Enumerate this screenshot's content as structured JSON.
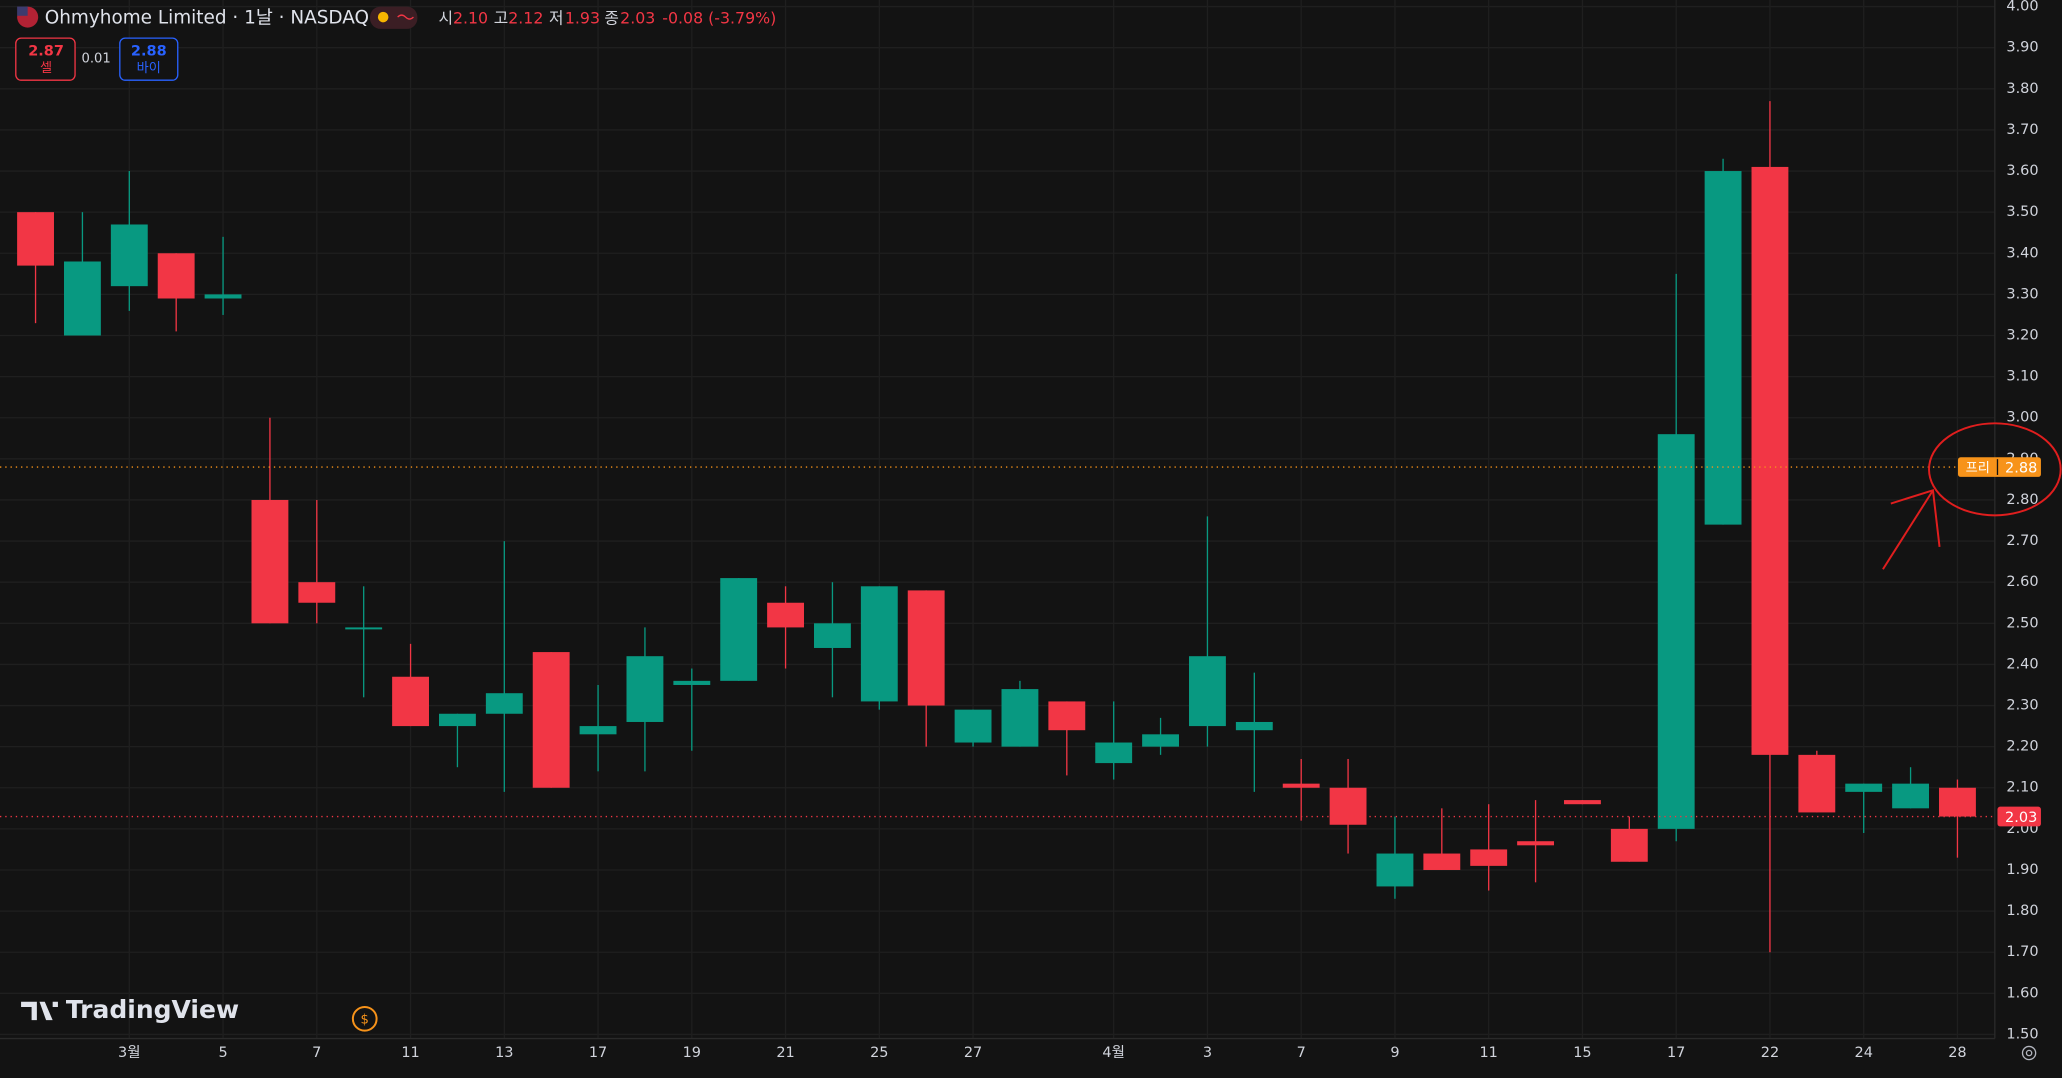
{
  "chart_data": {
    "type": "candlestick",
    "title": "Ohmyhome Limited · 1날 · NASDAQ",
    "ohlc_legend": {
      "open_label": "시",
      "open": "2.10",
      "high_label": "고",
      "high": "2.12",
      "low_label": "저",
      "low": "1.93",
      "close_label": "종",
      "close": "2.03",
      "change": "-0.08 (-3.79%)"
    },
    "order_panel": {
      "sell_price": "2.87",
      "sell_label": "셀",
      "spread": "0.01",
      "buy_price": "2.88",
      "buy_label": "바이"
    },
    "categories": [
      null,
      null,
      "3월",
      null,
      "5",
      null,
      "7",
      null,
      "11",
      null,
      "13",
      null,
      "17",
      null,
      "19",
      null,
      "21",
      null,
      "25",
      null,
      "27",
      null,
      null,
      "4월",
      null,
      "3",
      null,
      "7",
      null,
      "9",
      null,
      "11",
      null,
      "15",
      null,
      "17",
      null,
      "22",
      null,
      "24",
      null,
      "28"
    ],
    "series": [
      {
        "open": [
          3.5,
          3.2,
          3.32,
          3.4,
          3.29,
          2.8,
          2.6,
          2.49,
          2.37,
          2.25,
          2.28,
          2.43,
          2.23,
          2.26,
          2.35,
          2.36,
          2.55,
          2.44,
          2.31,
          2.58,
          2.21,
          2.2,
          2.31,
          2.16,
          2.2,
          2.25,
          2.24,
          2.11,
          2.1,
          1.86,
          1.94,
          1.95,
          1.97,
          2.07,
          2.0,
          2.0,
          2.74,
          3.61,
          2.18,
          2.09,
          2.05,
          2.1
        ],
        "high": [
          3.5,
          3.5,
          3.6,
          3.4,
          3.44,
          3.0,
          2.8,
          2.59,
          2.45,
          2.28,
          2.7,
          2.43,
          2.35,
          2.49,
          2.39,
          2.61,
          2.59,
          2.6,
          2.59,
          2.58,
          2.29,
          2.36,
          2.31,
          2.31,
          2.27,
          2.76,
          2.38,
          2.17,
          2.17,
          2.03,
          2.05,
          2.06,
          2.07,
          2.07,
          2.03,
          3.35,
          3.63,
          3.77,
          2.19,
          2.11,
          2.15,
          2.12
        ],
        "low": [
          3.23,
          3.2,
          3.26,
          3.21,
          3.25,
          2.5,
          2.5,
          2.32,
          2.25,
          2.15,
          2.09,
          2.1,
          2.14,
          2.14,
          2.19,
          2.36,
          2.39,
          2.32,
          2.29,
          2.2,
          2.2,
          2.2,
          2.13,
          2.12,
          2.18,
          2.2,
          2.09,
          2.02,
          1.94,
          1.83,
          1.9,
          1.85,
          1.87,
          2.06,
          1.92,
          1.97,
          2.74,
          1.7,
          2.04,
          1.99,
          2.05,
          1.93
        ],
        "close": [
          3.37,
          3.38,
          3.47,
          3.29,
          3.3,
          2.5,
          2.55,
          2.49,
          2.25,
          2.28,
          2.33,
          2.1,
          2.25,
          2.42,
          2.36,
          2.61,
          2.49,
          2.5,
          2.59,
          2.3,
          2.29,
          2.34,
          2.24,
          2.21,
          2.23,
          2.42,
          2.26,
          2.1,
          2.01,
          1.94,
          1.9,
          1.91,
          1.96,
          2.06,
          1.92,
          2.96,
          3.6,
          2.18,
          2.04,
          2.11,
          2.11,
          2.03
        ]
      }
    ],
    "up_color": "#089981",
    "down_color": "#f23645",
    "ylim": [
      1.49,
      4.016
    ],
    "yticks": [
      {
        "value": 1.5,
        "label": "1.50"
      },
      {
        "value": 1.6,
        "label": "1.60"
      },
      {
        "value": 1.7,
        "label": "1.70"
      },
      {
        "value": 1.8,
        "label": "1.80"
      },
      {
        "value": 1.9,
        "label": "1.90"
      },
      {
        "value": 2.0,
        "label": "2.00"
      },
      {
        "value": 2.1,
        "label": "2.10"
      },
      {
        "value": 2.2,
        "label": "2.20"
      },
      {
        "value": 2.3,
        "label": "2.30"
      },
      {
        "value": 2.4,
        "label": "2.40"
      },
      {
        "value": 2.5,
        "label": "2.50"
      },
      {
        "value": 2.6,
        "label": "2.60"
      },
      {
        "value": 2.7,
        "label": "2.70"
      },
      {
        "value": 2.8,
        "label": "2.80"
      },
      {
        "value": 2.9,
        "label": "2.90"
      },
      {
        "value": 3.0,
        "label": "3.00"
      },
      {
        "value": 3.1,
        "label": "3.10"
      },
      {
        "value": 3.2,
        "label": "3.20"
      },
      {
        "value": 3.3,
        "label": "3.30"
      },
      {
        "value": 3.4,
        "label": "3.40"
      },
      {
        "value": 3.5,
        "label": "3.50"
      },
      {
        "value": 3.6,
        "label": "3.60"
      },
      {
        "value": 3.7,
        "label": "3.70"
      },
      {
        "value": 3.8,
        "label": "3.80"
      },
      {
        "value": 3.9,
        "label": "3.90"
      },
      {
        "value": 4.0,
        "label": "4.00"
      }
    ],
    "grid": true,
    "premarket_price": {
      "name": "프리",
      "value": 2.88,
      "label": "2.88",
      "color": "#f7931a"
    },
    "last_price": {
      "value": 2.03,
      "label": "2.03",
      "color": "#f23645"
    },
    "watermark": "TradingView",
    "currency_icon": "$"
  }
}
